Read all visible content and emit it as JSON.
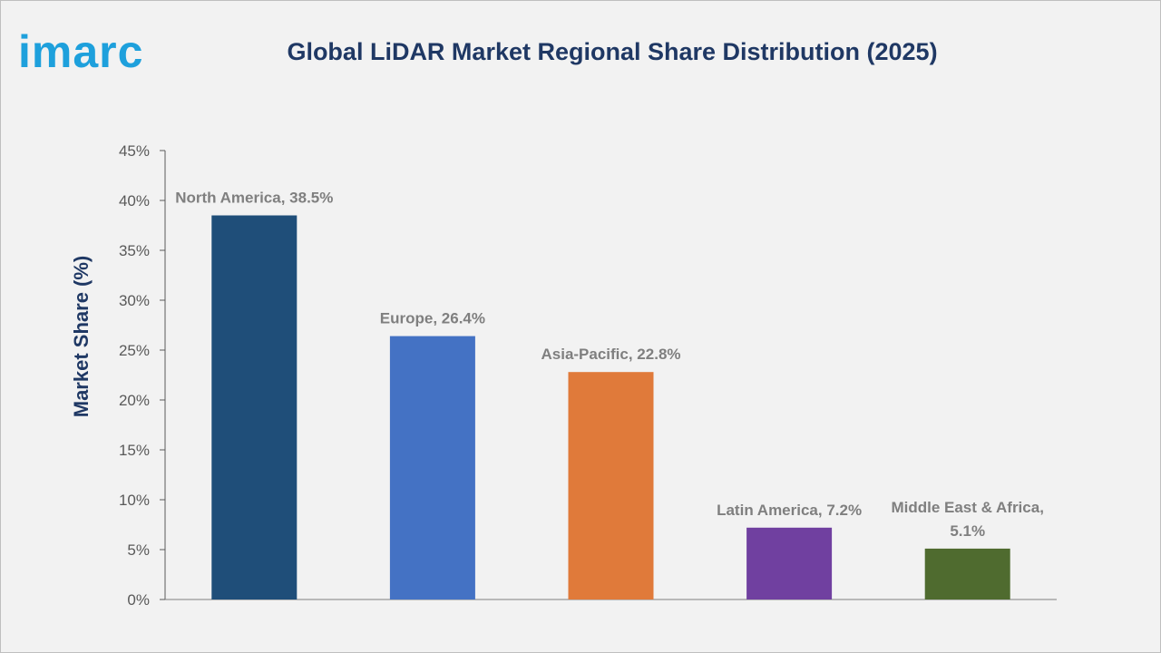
{
  "brand": {
    "logo_text": "imarc"
  },
  "colors": {
    "logo": "#1ea0dc",
    "title": "#1f3864",
    "axis": "#595959",
    "data_label": "#7f7f7f"
  },
  "chart_data": {
    "type": "bar",
    "title": "Global LiDAR Market Regional Share Distribution (2025)",
    "xlabel": "",
    "ylabel": "Market Share (%)",
    "ylim": [
      0,
      45
    ],
    "y_ticks": [
      0,
      5,
      10,
      15,
      20,
      25,
      30,
      35,
      40,
      45
    ],
    "y_tick_suffix": "%",
    "grid": false,
    "legend": "none",
    "categories": [
      "North America",
      "Europe",
      "Asia-Pacific",
      "Latin America",
      "Middle East & Africa"
    ],
    "values": [
      38.5,
      26.4,
      22.8,
      7.2,
      5.1
    ],
    "bar_colors": [
      "#1f4e79",
      "#4472c4",
      "#e07a3a",
      "#7040a0",
      "#4f6b2f"
    ],
    "data_labels": [
      [
        "North America, 38.5%"
      ],
      [
        "Europe, 26.4%"
      ],
      [
        "Asia-Pacific, 22.8%"
      ],
      [
        "Latin America, 7.2%"
      ],
      [
        "Middle East & Africa,",
        "5.1%"
      ]
    ]
  }
}
